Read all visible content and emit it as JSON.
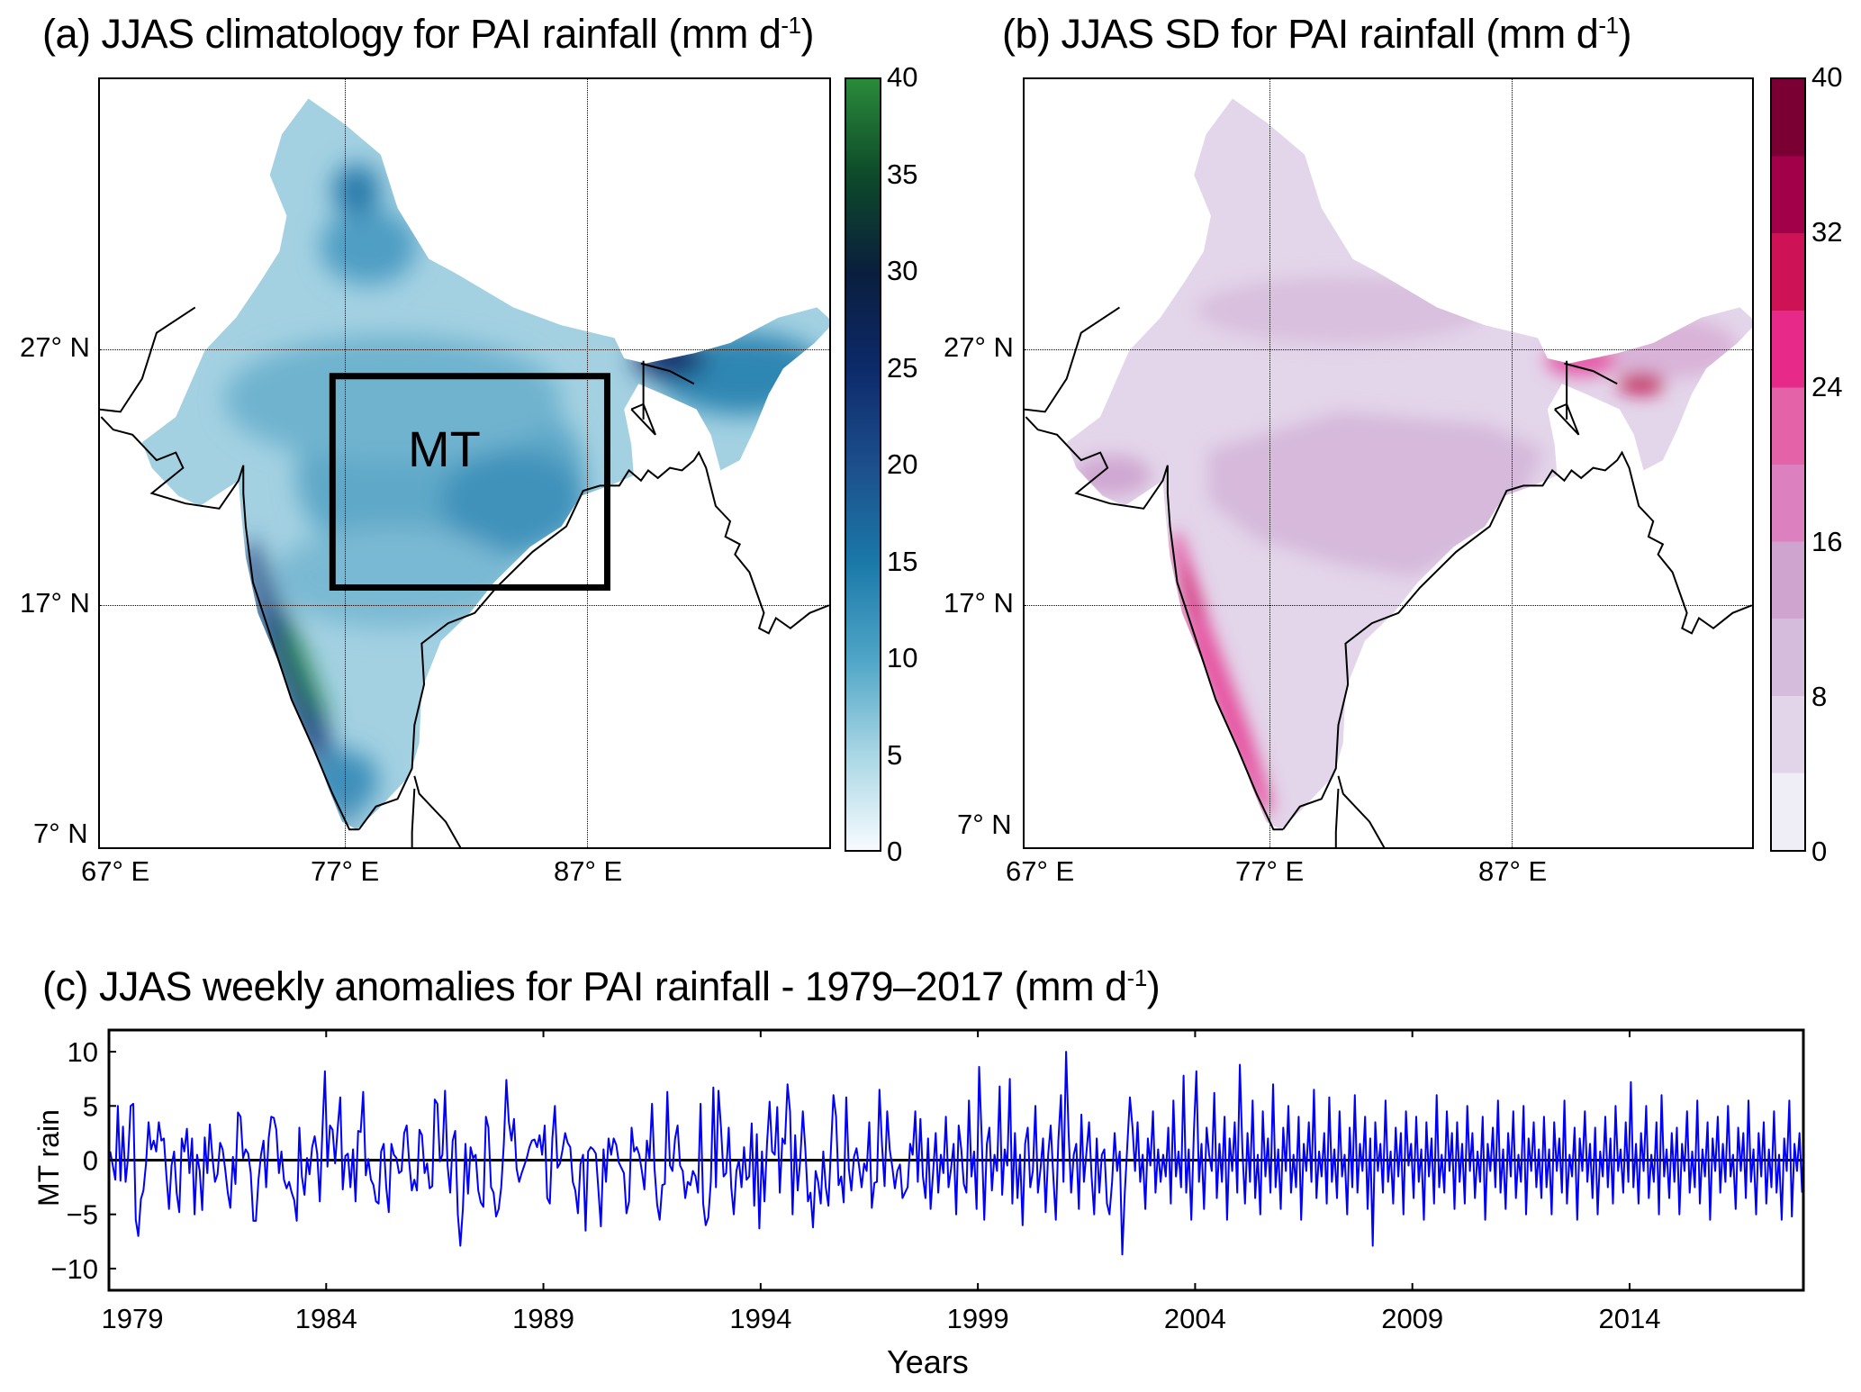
{
  "panel_a": {
    "title": "(a) JJAS climatology for PAI rainfall (mm d",
    "title_sup": "-1",
    "title_end": ")",
    "box_label": "MT",
    "colorbar_ticks": [
      "0",
      "5",
      "10",
      "15",
      "20",
      "25",
      "30",
      "35",
      "40"
    ],
    "colorbar_range": [
      0,
      40
    ],
    "colors": [
      "#f7fbff",
      "#a8d6e4",
      "#4da4c6",
      "#1a78a8",
      "#1d4e8c",
      "#0c2a6a",
      "#0a1e3d",
      "#0d4a2a",
      "#2a8a3a"
    ]
  },
  "panel_b": {
    "title": "(b) JJAS SD for PAI rainfall (mm d",
    "title_sup": "-1",
    "title_end": ")",
    "colorbar_ticks": [
      "0",
      "8",
      "16",
      "24",
      "32",
      "40"
    ],
    "colorbar_range": [
      0,
      40
    ],
    "colors": [
      "#efedf5",
      "#e2d4e9",
      "#d5bcdc",
      "#cfa5d0",
      "#dc80c0",
      "#e462a8",
      "#e7298a",
      "#ce1256",
      "#a3004a",
      "#7a0033"
    ]
  },
  "map_axes": {
    "lat_labels": [
      "27° N",
      "17° N",
      "7° N"
    ],
    "lon_labels": [
      "67° E",
      "77° E",
      "87° E"
    ]
  },
  "chart_data": {
    "type": "line",
    "title": "(c) JJAS weekly anomalies for PAI rainfall - 1979–2017 (mm d",
    "title_sup": "-1",
    "title_end": ")",
    "xlabel": "Years",
    "ylabel": "MT rain",
    "ylim": [
      -12,
      12
    ],
    "yticks": [
      "10",
      "5",
      "0",
      "−5",
      "−10"
    ],
    "ytick_values": [
      10,
      5,
      0,
      -5,
      -10
    ],
    "xticks": [
      "1979",
      "1984",
      "1989",
      "1994",
      "1999",
      "2004",
      "2009",
      "2014"
    ],
    "weeks_per_year": 17,
    "start_year": 1979,
    "line_color": "#0000ff",
    "values": [
      0.8,
      -0.5,
      -1.8,
      5.0,
      -1.9,
      3.1,
      -2.0,
      0.3,
      5.0,
      5.2,
      -5.5,
      -7.0,
      -3.6,
      -2.8,
      -0.3,
      3.5,
      1.0,
      1.8,
      0.8,
      3.5,
      1.8,
      2.0,
      -1.5,
      -4.5,
      -0.5,
      0.8,
      -3.0,
      -4.8,
      2.0,
      0.8,
      2.9,
      -1.2,
      2.0,
      -5.0,
      0.5,
      -1.0,
      -4.6,
      2.1,
      -1.2,
      3.3,
      0.2,
      -2.0,
      -1.3,
      1.6,
      1.0,
      -0.9,
      -3.0,
      -4.4,
      0.3,
      -2.2,
      4.4,
      4.0,
      0.2,
      1.0,
      0.6,
      -1.2,
      -5.6,
      -5.6,
      -1.8,
      0.5,
      1.8,
      -2.5,
      2.0,
      4.0,
      3.9,
      2.8,
      -1.2,
      0.8,
      -1.8,
      -2.6,
      -2.0,
      -3.0,
      -3.7,
      -5.6,
      3.0,
      -1.5,
      -3.2,
      0.2,
      -1.3,
      1.2,
      2.2,
      0.6,
      -3.8,
      2.5,
      8.2,
      -0.6,
      3.2,
      2.8,
      -0.3,
      3.0,
      5.8,
      -2.7,
      0.4,
      0.6,
      -2.5,
      1.0,
      -3.8,
      2.7,
      2.6,
      6.3,
      -1.4,
      0.1,
      -1.8,
      -2.3,
      -3.8,
      -4.0,
      0.8,
      1.5,
      -2.5,
      -4.8,
      1.5,
      0.5,
      0.2,
      -1.2,
      -1.0,
      2.5,
      3.2,
      -0.2,
      -2.8,
      -1.8,
      -2.8,
      2.8,
      2.3,
      -1.2,
      -0.3,
      -2.6,
      -2.4,
      5.6,
      5.2,
      -0.1,
      0.5,
      6.4,
      -0.5,
      -3.0,
      1.8,
      2.7,
      -5.0,
      -7.9,
      -4.5,
      1.5,
      -3.1,
      1.2,
      0.2,
      0.5,
      -2.8,
      -3.9,
      -4.3,
      4.0,
      3.0,
      -2.5,
      -3.0,
      -5.2,
      -4.5,
      -2.5,
      1.5,
      7.4,
      3.5,
      1.8,
      3.8,
      -0.8,
      -2.0,
      -1.2,
      -0.5,
      0.2,
      1.2,
      1.8,
      1.9,
      1.2,
      2.3,
      0.5,
      3.2,
      -3.5,
      -4.0,
      2.0,
      5.0,
      -0.7,
      -0.3,
      1.0,
      2.5,
      1.6,
      1.2,
      -2.0,
      -2.8,
      -4.9,
      -0.4,
      0.5,
      -6.5,
      0.8,
      1.2,
      1.0,
      0.6,
      -2.7,
      -6.1,
      1.0,
      -2.0,
      2.0,
      0.5,
      2.0,
      1.4,
      -0.2,
      -0.7,
      -1.2,
      -4.9,
      -3.8,
      3.0,
      0.8,
      1.2,
      0.5,
      -1.0,
      -2.7,
      1.8,
      0.1,
      5.2,
      -0.8,
      -4.1,
      -5.5,
      -2.3,
      -2.2,
      6.3,
      -0.5,
      -1.0,
      2.0,
      3.2,
      -0.5,
      -1.0,
      -3.5,
      -2.0,
      -2.3,
      -1.0,
      -1.5,
      -3.0,
      5.2,
      -4.0,
      -6.0,
      -5.3,
      -2.0,
      6.7,
      -2.5,
      6.4,
      3.0,
      -1.5,
      -1.2,
      3.0,
      -2.5,
      -5.0,
      -1.0,
      0.0,
      -2.5,
      1.2,
      -1.8,
      -1.5,
      3.4,
      -4.2,
      2.4,
      -6.3,
      0.8,
      -3.8,
      1.5,
      5.4,
      0.8,
      0.5,
      4.9,
      -3.0,
      2.0,
      1.5,
      7.0,
      4.5,
      -5.0,
      2.3,
      -2.8,
      0.0,
      4.5,
      1.0,
      -3.8,
      -3.0,
      -6.2,
      -1.0,
      -2.0,
      -4.0,
      0.8,
      -2.5,
      -4.2,
      1.0,
      6.0,
      4.0,
      -2.3,
      -1.5,
      -3.9,
      5.8,
      -0.8,
      -2.8,
      0.3,
      1.1,
      -0.5,
      -2.5,
      -0.3,
      -1.0,
      3.5,
      -4.4,
      -2.1,
      -2.0,
      6.5,
      1.3,
      -2.4,
      4.5,
      1.0,
      -0.6,
      -2.6,
      -1.0,
      -0.4,
      -3.5,
      -3.0,
      -2.5,
      1.5,
      0.5,
      4.5,
      -2.0,
      3.8,
      -1.5,
      -3.5,
      2.0,
      -4.5,
      -1.0,
      2.5,
      -3.0,
      0.5,
      -1.2,
      4.0,
      -2.5,
      -0.8,
      1.5,
      -5.0,
      3.2,
      1.0,
      -2.2,
      -3.0,
      5.5,
      -1.5,
      0.8,
      -4.5,
      8.6,
      2.0,
      -5.5,
      1.5,
      3.0,
      -2.8,
      0.5,
      -1.0,
      6.8,
      -3.2,
      1.0,
      -0.5,
      7.5,
      -4.0,
      2.5,
      -3.5,
      0.5,
      -6.0,
      1.5,
      3.0,
      -2.5,
      -1.0,
      5.0,
      -3.0,
      -0.8,
      2.0,
      -4.8,
      0.5,
      3.2,
      -1.5,
      -5.5,
      1.8,
      6.0,
      -2.0,
      10.0,
      2.5,
      -3.0,
      0.5,
      1.5,
      -4.5,
      4.2,
      -2.0,
      0.8,
      3.5,
      -1.5,
      -5.0,
      2.0,
      -3.0,
      0.5,
      1.0,
      -4.0,
      -5.0,
      -2.0,
      2.5,
      -1.0,
      0.8,
      -8.7,
      -3.0,
      1.5,
      5.8,
      3.0,
      -1.0,
      3.5,
      -2.0,
      0.5,
      -4.5,
      2.0,
      -0.5,
      4.5,
      -3.0,
      1.0,
      -2.0,
      0.5,
      -1.5,
      3.0,
      -4.0,
      5.5,
      -1.5,
      0.8,
      -2.5,
      7.8,
      -3.0,
      1.0,
      -5.5,
      2.5,
      8.2,
      -2.0,
      1.5,
      -4.5,
      3.0,
      0.5,
      -1.0,
      6.2,
      -3.5,
      1.5,
      -2.0,
      4.0,
      -5.5,
      2.0,
      -1.0,
      3.5,
      -3.0,
      8.8,
      1.0,
      -4.0,
      2.5,
      -2.0,
      5.5,
      -3.5,
      0.5,
      -5.0,
      4.5,
      -1.5,
      2.0,
      -3.0,
      7.0,
      -2.5,
      1.0,
      -4.5,
      3.0,
      -1.0,
      5.0,
      -3.0,
      0.5,
      -2.5,
      4.0,
      -5.5,
      1.5,
      -1.0,
      3.5,
      -2.0,
      6.5,
      -3.5,
      0.8,
      -1.5,
      2.5,
      -4.0,
      5.8,
      -2.0,
      1.0,
      -3.5,
      4.5,
      -1.5,
      0.5,
      -5.0,
      3.0,
      -2.5,
      6.0,
      -3.0,
      1.5,
      -1.0,
      4.0,
      -4.5,
      2.0,
      -7.9,
      3.5,
      -1.0,
      1.5,
      -3.0,
      5.5,
      -2.0,
      0.8,
      -4.0,
      3.0,
      -1.5,
      2.5,
      -5.0,
      4.5,
      -0.5,
      1.5,
      -3.5,
      4.0,
      -2.0,
      1.0,
      -5.5,
      3.5,
      -1.5,
      2.0,
      -4.0,
      6.0,
      -2.5,
      0.5,
      -3.0,
      4.5,
      -1.0,
      2.5,
      -4.5,
      3.5,
      -2.0,
      1.5,
      -4.0,
      5.0,
      -1.0,
      2.5,
      -3.5,
      0.8,
      -2.0,
      4.0,
      -5.5,
      1.5,
      -1.0,
      3.0,
      -2.5,
      5.5,
      -3.0,
      1.0,
      -4.5,
      2.5,
      -1.5,
      4.5,
      -3.5,
      0.5,
      -2.0,
      5.0,
      -5.0,
      2.0,
      -1.0,
      3.5,
      -2.5,
      1.0,
      -3.5,
      4.0,
      -2.5,
      1.0,
      -5.0,
      3.5,
      -1.0,
      2.0,
      -3.0,
      5.5,
      -4.0,
      0.5,
      -1.5,
      3.0,
      -5.5,
      2.0,
      -1.0,
      4.5,
      -2.0,
      1.5,
      -3.5,
      3.0,
      -5.0,
      0.8,
      -1.5,
      4.0,
      -2.5,
      2.0,
      -4.0,
      5.0,
      -1.0,
      1.0,
      -3.0,
      3.5,
      -2.0,
      7.2,
      -2.5,
      1.5,
      -4.0,
      2.5,
      -1.0,
      5.0,
      -3.5,
      0.5,
      -2.0,
      3.5,
      -5.0,
      6.0,
      -1.5,
      1.0,
      -3.5,
      2.5,
      -2.0,
      3.0,
      -5.0,
      1.5,
      -1.0,
      4.5,
      -3.0,
      0.8,
      -2.5,
      5.5,
      -4.0,
      1.0,
      -1.5,
      3.5,
      -5.5,
      2.0,
      -1.0,
      4.0,
      -3.0,
      1.5,
      -2.0,
      5.0,
      -1.5,
      0.5,
      -4.5,
      3.0,
      -1.0,
      2.5,
      -3.5,
      5.5,
      -2.0,
      1.0,
      -5.0,
      2.5,
      -1.5,
      3.5,
      -4.0,
      1.0,
      -2.5,
      4.5,
      -3.0,
      0.5,
      -5.5,
      2.0,
      -1.0,
      5.5,
      -5.2,
      1.5,
      -1.0,
      2.5,
      -3.0
    ]
  }
}
